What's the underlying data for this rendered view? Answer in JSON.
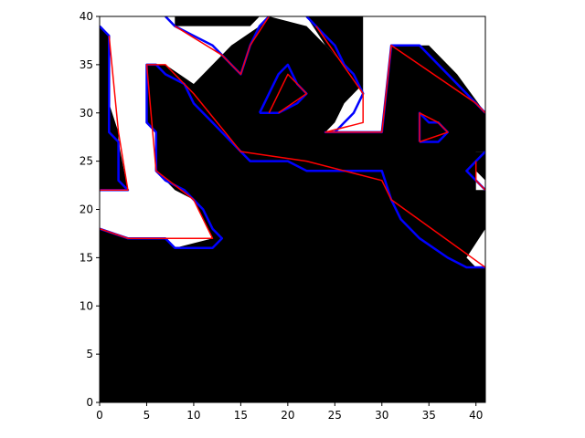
{
  "chart_data": {
    "type": "contour",
    "title": "",
    "xlabel": "",
    "ylabel": "",
    "xlim": [
      0,
      41
    ],
    "ylim": [
      0,
      40
    ],
    "x_ticks": [
      0,
      5,
      10,
      15,
      20,
      25,
      30,
      35,
      40
    ],
    "y_ticks": [
      0,
      5,
      10,
      15,
      20,
      25,
      30,
      35,
      40
    ],
    "colors": {
      "background": "#000000",
      "foreground": "#ffffff",
      "pixel_contour": "#0000ff",
      "simplified_contour": "#ff0000"
    },
    "white_regions": [
      [
        [
          0,
          40
        ],
        [
          41,
          40
        ],
        [
          41,
          22
        ],
        [
          40,
          22
        ],
        [
          40,
          26
        ],
        [
          41,
          26
        ],
        [
          41,
          30
        ],
        [
          38,
          34
        ],
        [
          35,
          37
        ],
        [
          31,
          37
        ],
        [
          30,
          28
        ],
        [
          24,
          28
        ],
        [
          25,
          29
        ],
        [
          26,
          31
        ],
        [
          28,
          33
        ],
        [
          25,
          36
        ],
        [
          22,
          39
        ],
        [
          18,
          40
        ],
        [
          17,
          39
        ],
        [
          14,
          37
        ],
        [
          12,
          35
        ],
        [
          10,
          33
        ],
        [
          7,
          35
        ],
        [
          6,
          35
        ],
        [
          6,
          24
        ],
        [
          8,
          22
        ],
        [
          10,
          21
        ],
        [
          12,
          18
        ],
        [
          13,
          17
        ],
        [
          12,
          16
        ],
        [
          8,
          16
        ],
        [
          7,
          17
        ],
        [
          3,
          17
        ],
        [
          0,
          18
        ],
        [
          0,
          22
        ],
        [
          3,
          22
        ],
        [
          2,
          23
        ],
        [
          2,
          28
        ],
        [
          1,
          31
        ],
        [
          0,
          39
        ]
      ],
      [
        [
          40,
          14
        ],
        [
          41,
          14
        ],
        [
          41,
          18
        ],
        [
          39,
          15
        ]
      ]
    ],
    "black_regions": [
      [
        [
          8,
          39
        ],
        [
          12,
          39
        ],
        [
          16,
          39
        ],
        [
          17,
          40
        ],
        [
          8,
          40
        ]
      ],
      [
        [
          22,
          40
        ],
        [
          24,
          37
        ],
        [
          26,
          35
        ],
        [
          28,
          32
        ],
        [
          28,
          40
        ]
      ],
      [
        [
          0,
          0
        ],
        [
          41,
          0
        ],
        [
          41,
          14
        ],
        [
          39,
          14
        ],
        [
          37,
          15
        ],
        [
          34,
          17
        ],
        [
          32,
          19
        ],
        [
          31,
          21
        ],
        [
          30,
          24
        ],
        [
          27,
          24
        ],
        [
          22,
          24
        ],
        [
          20,
          25
        ],
        [
          16,
          25
        ],
        [
          14,
          27
        ],
        [
          12,
          29
        ],
        [
          10,
          31
        ],
        [
          8,
          33
        ],
        [
          6,
          35
        ],
        [
          5,
          35
        ],
        [
          5,
          29
        ],
        [
          6,
          28
        ],
        [
          6,
          25
        ],
        [
          8,
          23
        ],
        [
          10,
          21
        ],
        [
          11,
          19
        ],
        [
          12,
          17
        ],
        [
          8,
          16
        ],
        [
          7,
          17
        ],
        [
          3,
          17
        ],
        [
          0,
          18
        ]
      ],
      [
        [
          0,
          22
        ],
        [
          3,
          22
        ],
        [
          2,
          27
        ],
        [
          1,
          28
        ],
        [
          1,
          38
        ],
        [
          0,
          39
        ]
      ],
      [
        [
          13,
          35
        ],
        [
          15,
          35
        ],
        [
          14,
          34
        ],
        [
          13,
          34
        ]
      ],
      [
        [
          17,
          30
        ],
        [
          18,
          32
        ],
        [
          19,
          35
        ],
        [
          20,
          34
        ],
        [
          22,
          32
        ],
        [
          22,
          30
        ],
        [
          19,
          29
        ]
      ],
      [
        [
          34,
          27
        ],
        [
          34,
          30
        ],
        [
          36,
          29
        ],
        [
          37,
          28
        ],
        [
          36,
          27
        ]
      ],
      [
        [
          39,
          24
        ],
        [
          40,
          24
        ],
        [
          41,
          23
        ],
        [
          41,
          26
        ],
        [
          40,
          26
        ]
      ]
    ],
    "pixel_contours": [
      [
        [
          0,
          39
        ],
        [
          1,
          38
        ],
        [
          1,
          28
        ],
        [
          2,
          27
        ],
        [
          2,
          23
        ],
        [
          3,
          22
        ],
        [
          0,
          22
        ]
      ],
      [
        [
          0,
          18
        ],
        [
          3,
          17
        ],
        [
          7,
          17
        ],
        [
          8,
          16
        ],
        [
          12,
          16
        ],
        [
          13,
          17
        ],
        [
          12,
          18
        ],
        [
          11,
          20
        ],
        [
          9,
          22
        ],
        [
          7,
          23
        ],
        [
          6,
          24
        ],
        [
          6,
          28
        ],
        [
          5,
          29
        ],
        [
          5,
          35
        ],
        [
          6,
          35
        ],
        [
          7,
          34
        ],
        [
          9,
          33
        ],
        [
          10,
          31
        ],
        [
          12,
          29
        ],
        [
          14,
          27
        ],
        [
          16,
          25
        ],
        [
          20,
          25
        ],
        [
          22,
          24
        ],
        [
          27,
          24
        ],
        [
          30,
          24
        ],
        [
          31,
          21
        ],
        [
          32,
          19
        ],
        [
          34,
          17
        ],
        [
          37,
          15
        ],
        [
          39,
          14
        ],
        [
          41,
          14
        ]
      ],
      [
        [
          7,
          40
        ],
        [
          8,
          39
        ],
        [
          10,
          38
        ],
        [
          12,
          37
        ],
        [
          13,
          36
        ],
        [
          14,
          35
        ],
        [
          15,
          34
        ],
        [
          16,
          37
        ],
        [
          17,
          39
        ],
        [
          18,
          40
        ]
      ],
      [
        [
          22,
          40
        ],
        [
          24,
          38
        ],
        [
          25,
          37
        ],
        [
          26,
          35
        ],
        [
          27,
          34
        ],
        [
          28,
          32
        ],
        [
          27,
          30
        ],
        [
          26,
          29
        ],
        [
          25,
          28
        ],
        [
          24,
          28
        ],
        [
          30,
          28
        ],
        [
          31,
          37
        ],
        [
          34,
          37
        ],
        [
          35,
          36
        ],
        [
          37,
          34
        ],
        [
          38,
          33
        ],
        [
          40,
          31
        ],
        [
          41,
          30
        ]
      ],
      [
        [
          17,
          30
        ],
        [
          18,
          32
        ],
        [
          19,
          34
        ],
        [
          20,
          35
        ],
        [
          21,
          33
        ],
        [
          22,
          32
        ],
        [
          21,
          31
        ],
        [
          19,
          30
        ],
        [
          17,
          30
        ]
      ],
      [
        [
          34,
          27
        ],
        [
          34,
          30
        ],
        [
          35,
          29
        ],
        [
          36,
          29
        ],
        [
          37,
          28
        ],
        [
          36,
          27
        ],
        [
          34,
          27
        ]
      ],
      [
        [
          41,
          26
        ],
        [
          40,
          25
        ],
        [
          39,
          24
        ],
        [
          40,
          23
        ],
        [
          41,
          22
        ]
      ]
    ],
    "simplified_contours": [
      [
        [
          1,
          38
        ],
        [
          2,
          28
        ],
        [
          3,
          22
        ],
        [
          0,
          22
        ]
      ],
      [
        [
          0,
          18
        ],
        [
          3,
          17
        ],
        [
          12,
          17
        ],
        [
          10,
          21
        ],
        [
          6,
          24
        ],
        [
          5,
          35
        ],
        [
          7,
          35
        ],
        [
          10,
          32
        ],
        [
          15,
          26
        ],
        [
          22,
          25
        ],
        [
          30,
          23
        ],
        [
          31,
          21
        ],
        [
          41,
          14
        ]
      ],
      [
        [
          8,
          39
        ],
        [
          13,
          36
        ],
        [
          15,
          34
        ],
        [
          16,
          37
        ],
        [
          18,
          40
        ]
      ],
      [
        [
          23,
          39
        ],
        [
          28,
          32
        ],
        [
          28,
          29
        ],
        [
          24,
          28
        ],
        [
          30,
          28
        ],
        [
          31,
          37
        ],
        [
          40,
          31
        ],
        [
          41,
          30
        ]
      ],
      [
        [
          18,
          30
        ],
        [
          20,
          34
        ],
        [
          22,
          32
        ],
        [
          19,
          30
        ]
      ],
      [
        [
          34,
          27
        ],
        [
          34,
          30
        ],
        [
          36,
          29
        ],
        [
          37,
          28
        ],
        [
          34,
          27
        ]
      ],
      [
        [
          40,
          25
        ],
        [
          40,
          23
        ],
        [
          41,
          22
        ]
      ]
    ]
  }
}
